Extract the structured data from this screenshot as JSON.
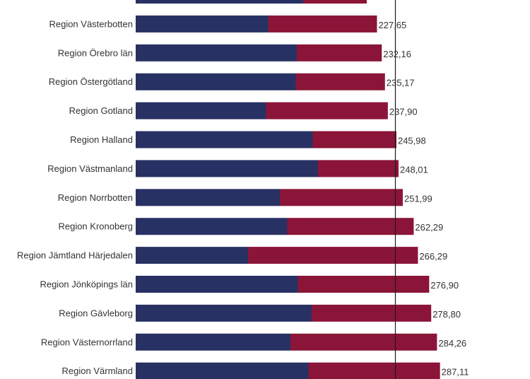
{
  "chart_data": {
    "type": "bar",
    "orientation": "horizontal",
    "stacked": true,
    "categories": [
      "",
      "Region Västerbotten",
      "Region Örebro län",
      "Region Östergötland",
      "Region Gotland",
      "Region Halland",
      "Region Västmanland",
      "Region Norrbotten",
      "Region Kronoberg",
      "Region Jämtland Härjedalen",
      "Region Jönköpings län",
      "Region Gävleborg",
      "Region Västernorrland",
      "Region Värmland"
    ],
    "totals": [
      null,
      227.65,
      232.16,
      235.17,
      237.9,
      245.98,
      248.01,
      251.99,
      262.29,
      266.29,
      276.9,
      278.8,
      284.26,
      287.11
    ],
    "total_labels": [
      "",
      "227,65",
      "232,16",
      "235,17",
      "237,90",
      "245,98",
      "248,01",
      "251,99",
      "262,29",
      "266,29",
      "276,90",
      "278,80",
      "284,26",
      "287,11"
    ],
    "series": [
      {
        "values": [
          158,
          125,
          152,
          151,
          123,
          167,
          172,
          136,
          143,
          106,
          153,
          166,
          146,
          163
        ],
        "color": "#283163"
      },
      {
        "values": [
          60,
          102.65,
          80.16,
          84.17,
          114.9,
          78.98,
          76.01,
          115.99,
          119.29,
          160.29,
          123.9,
          112.8,
          138.26,
          124.11
        ],
        "color": "#8b1538"
      }
    ],
    "reference_line": {
      "value": 245
    },
    "xlim": [
      0,
      310
    ],
    "grid": false,
    "legend": "none"
  }
}
